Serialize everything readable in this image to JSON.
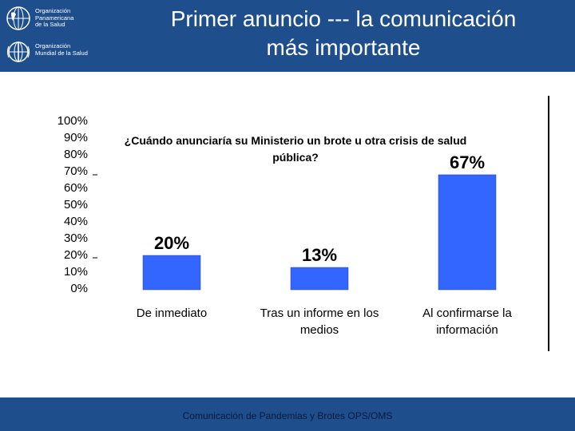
{
  "header": {
    "org1": [
      "Organización",
      "Panamericana",
      "de la Salud"
    ],
    "org2": [
      "Organización",
      "Mundial de la Salud"
    ],
    "title_line1": "Primer anuncio --- la comunicación",
    "title_line2": "más importante",
    "logo1_icon": "paho-globe-logo-icon",
    "logo2_icon": "who-emblem-logo-icon",
    "bg_color": "#1f4e8c"
  },
  "footer": {
    "text": "Comunicación de Pandemias y Brotes OPS/OMS"
  },
  "chart_data": {
    "type": "bar",
    "title_line1": "¿Cuándo anunciaría su Ministerio un brote u otra crisis de salud",
    "title_line2": "pública?",
    "categories": [
      [
        "De inmediato"
      ],
      [
        "Tras un informe en los",
        "medios"
      ],
      [
        "Al confirmarse la",
        "información"
      ]
    ],
    "values": [
      20,
      13,
      67
    ],
    "data_labels": [
      "20%",
      "13%",
      "67%"
    ],
    "y_ticks": [
      "100%",
      "90%",
      "80%",
      "70%",
      "60%",
      "50%",
      "40%",
      "30%",
      "20%",
      "10%",
      "0%"
    ],
    "ylim": [
      0,
      100
    ],
    "bar_color": "#3366ff",
    "grid": false
  }
}
